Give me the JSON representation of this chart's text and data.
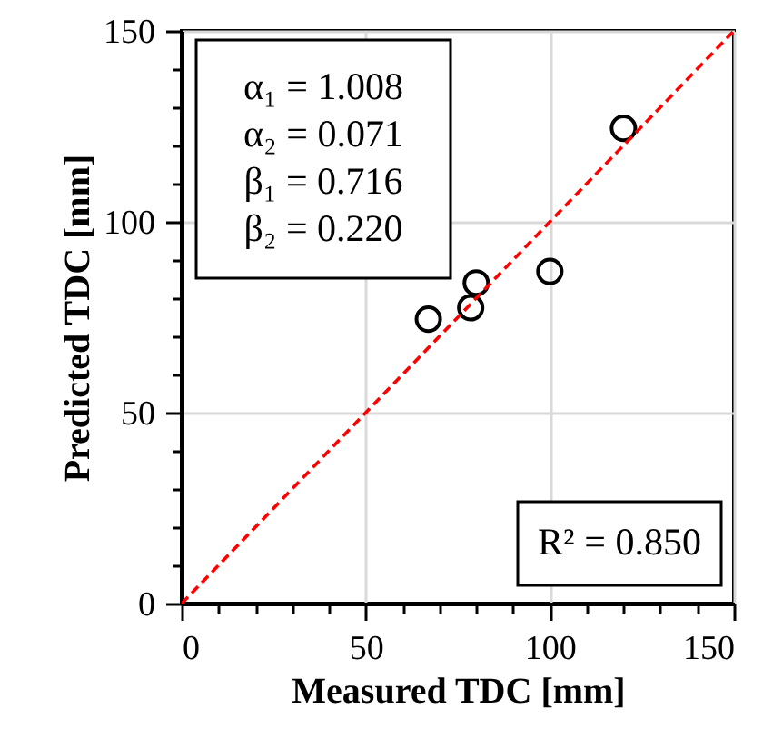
{
  "chart_data": {
    "type": "scatter",
    "xlabel": "Measured TDC [mm]",
    "ylabel": "Predicted TDC [mm]",
    "x": [
      120,
      100,
      80,
      78.5,
      67
    ],
    "series": [
      {
        "type": "scatter",
        "color": "#000000",
        "values": [
          124.5,
          87,
          84,
          77.5,
          74.5
        ]
      },
      {
        "type": "line",
        "color": "#ff0000",
        "line_style": "dashed",
        "marker": "none",
        "x": [
          0,
          150
        ],
        "values": [
          0,
          150
        ]
      }
    ],
    "marker": "circle",
    "xlim": [
      0,
      150
    ],
    "ylim": [
      0,
      150
    ],
    "xticks": [
      0,
      {
        "value": 10,
        "label": null
      },
      {
        "value": 20,
        "label": null
      },
      {
        "value": 30,
        "label": null
      },
      {
        "value": 40,
        "label": null
      },
      50,
      {
        "value": 60,
        "label": null
      },
      {
        "value": 70,
        "label": null
      },
      {
        "value": 80,
        "label": null
      },
      {
        "value": 90,
        "label": null
      },
      100,
      {
        "value": 110,
        "label": null
      },
      {
        "value": 120,
        "label": null
      },
      {
        "value": 130,
        "label": null
      },
      {
        "value": 140,
        "label": null
      },
      150
    ],
    "yticks": [
      0,
      {
        "value": 10,
        "label": null
      },
      {
        "value": 20,
        "label": null
      },
      {
        "value": 30,
        "label": null
      },
      {
        "value": 40,
        "label": null
      },
      50,
      {
        "value": 60,
        "label": null
      },
      {
        "value": 70,
        "label": null
      },
      {
        "value": 80,
        "label": null
      },
      {
        "value": 90,
        "label": null
      },
      100,
      {
        "value": 110,
        "label": null
      },
      {
        "value": 120,
        "label": null
      },
      {
        "value": 130,
        "label": null
      },
      {
        "value": 140,
        "label": null
      },
      150
    ],
    "grid": true,
    "annotations": [
      "α₁ = 1.008",
      "α₂ = 0.071",
      "β₁ = 0.716",
      "β₂ = 0.220",
      "R² = 0.850"
    ]
  }
}
